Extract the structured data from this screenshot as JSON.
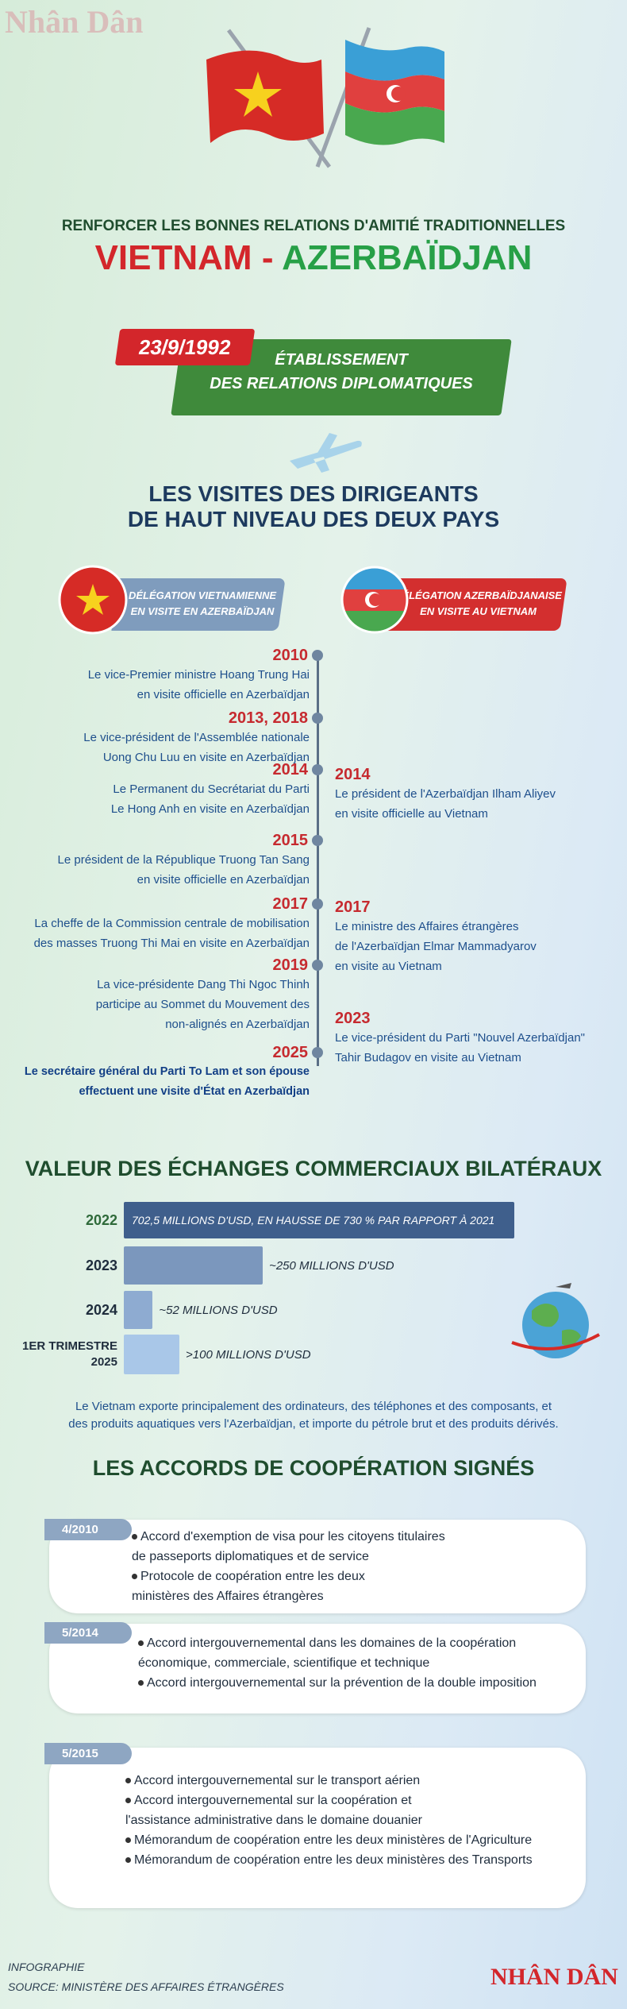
{
  "logo": "Nhân Dân",
  "header": {
    "kicker": "RENFORCER LES BONNES RELATIONS D'AMITIÉ TRADITIONNELLES",
    "country1": "VIETNAM",
    "separator": "-",
    "country2": "AZERBAÏDJAN"
  },
  "establishment": {
    "date": "23/9/1992",
    "lines": [
      "ÉTABLISSEMENT",
      "DES RELATIONS DIPLOMATIQUES"
    ]
  },
  "visits": {
    "title": [
      "LES VISITES DES DIRIGEANTS",
      "DE HAUT NIVEAU DES DEUX PAYS"
    ],
    "left_label": [
      "DÉLÉGATION VIETNAMIENNE",
      "EN VISITE EN AZERBAÏDJAN"
    ],
    "right_label": [
      "DÉLÉGATION AZERBAÏDJANAISE",
      "EN VISITE AU VIETNAM"
    ],
    "left": [
      {
        "year": "2010",
        "lines": [
          "Le vice-Premier ministre Hoang Trung Hai",
          "en visite officielle en Azerbaïdjan"
        ]
      },
      {
        "year": "2013, 2018",
        "lines": [
          "Le vice-président de l'Assemblée nationale",
          "Uong Chu Luu en visite en Azerbaïdjan"
        ]
      },
      {
        "year": "2014",
        "lines": [
          "Le Permanent du Secrétariat du Parti",
          "Le Hong Anh en visite en Azerbaïdjan"
        ]
      },
      {
        "year": "2015",
        "lines": [
          "Le président de la République Truong Tan Sang",
          "en visite officielle en Azerbaïdjan"
        ]
      },
      {
        "year": "2017",
        "lines": [
          "La cheffe de la Commission centrale de mobilisation",
          "des masses Truong Thi Mai en visite en Azerbaïdjan"
        ]
      },
      {
        "year": "2019",
        "lines": [
          "La vice-présidente Dang Thi Ngoc Thinh",
          "participe au Sommet du Mouvement des",
          "non-alignés en Azerbaïdjan"
        ]
      },
      {
        "year": "2025",
        "lines": [
          "Le secrétaire général du Parti To Lam et son épouse",
          "effectuent une visite d'État en Azerbaïdjan"
        ]
      }
    ],
    "right": [
      {
        "year": "2014",
        "lines": [
          "Le président de l'Azerbaïdjan Ilham Aliyev",
          "en visite officielle au Vietnam"
        ]
      },
      {
        "year": "2017",
        "lines": [
          "Le ministre des Affaires étrangères",
          "de l'Azerbaïdjan Elmar Mammadyarov",
          "en visite au Vietnam"
        ]
      },
      {
        "year": "2023",
        "lines": [
          "Le vice-président du Parti \"Nouvel Azerbaïdjan\"",
          "Tahir Budagov en visite au Vietnam"
        ]
      }
    ]
  },
  "chart_data": {
    "type": "bar",
    "orientation": "horizontal",
    "title": "VALEUR DES ÉCHANGES COMMERCIAUX BILATÉRAUX",
    "categories": [
      "2022",
      "2023",
      "2024",
      "1ER TRIMESTRE 2025"
    ],
    "values": [
      702.5,
      250,
      52,
      100
    ],
    "value_labels": [
      "702,5 MILLIONS D'USD, EN HAUSSE DE 730 % PAR RAPPORT À 2021",
      "~250 MILLIONS D'USD",
      "~52 MILLIONS D'USD",
      ">100 MILLIONS D'USD"
    ],
    "colors": [
      "#3f5f8c",
      "#7b97bd",
      "#8eabd1",
      "#a9c7e8"
    ]
  },
  "trade_note": [
    "Le Vietnam exporte principalement des ordinateurs, des téléphones et des composants, et",
    "des produits aquatiques vers l'Azerbaïdjan, et importe du pétrole brut et des produits dérivés."
  ],
  "agreements": {
    "title": "LES ACCORDS DE COOPÉRATION SIGNÉS",
    "items": [
      {
        "date": "4/2010",
        "bullets": [
          [
            "Accord d'exemption de visa pour les citoyens titulaires",
            "de passeports diplomatiques et de service"
          ],
          [
            "Protocole de coopération entre les deux",
            "ministères des Affaires étrangères"
          ]
        ]
      },
      {
        "date": "5/2014",
        "bullets": [
          [
            "Accord intergouvernemental dans les domaines de la coopération",
            "économique, commerciale, scientifique et technique"
          ],
          [
            "Accord intergouvernemental sur la prévention de la double imposition"
          ]
        ]
      },
      {
        "date": "5/2015",
        "bullets": [
          [
            "Accord intergouvernemental sur le transport aérien"
          ],
          [
            "Accord intergouvernemental sur la coopération et",
            "l'assistance administrative dans le domaine douanier"
          ],
          [
            "Mémorandum de coopération entre les deux ministères de l'Agriculture"
          ],
          [
            "Mémorandum de coopération entre les deux ministères des Transports"
          ]
        ]
      }
    ]
  },
  "footer": {
    "label": "INFOGRAPHIE",
    "source": "SOURCE: MINISTÈRE DES AFFAIRES ÉTRANGÈRES",
    "brand": "NHÂN DÂN"
  }
}
